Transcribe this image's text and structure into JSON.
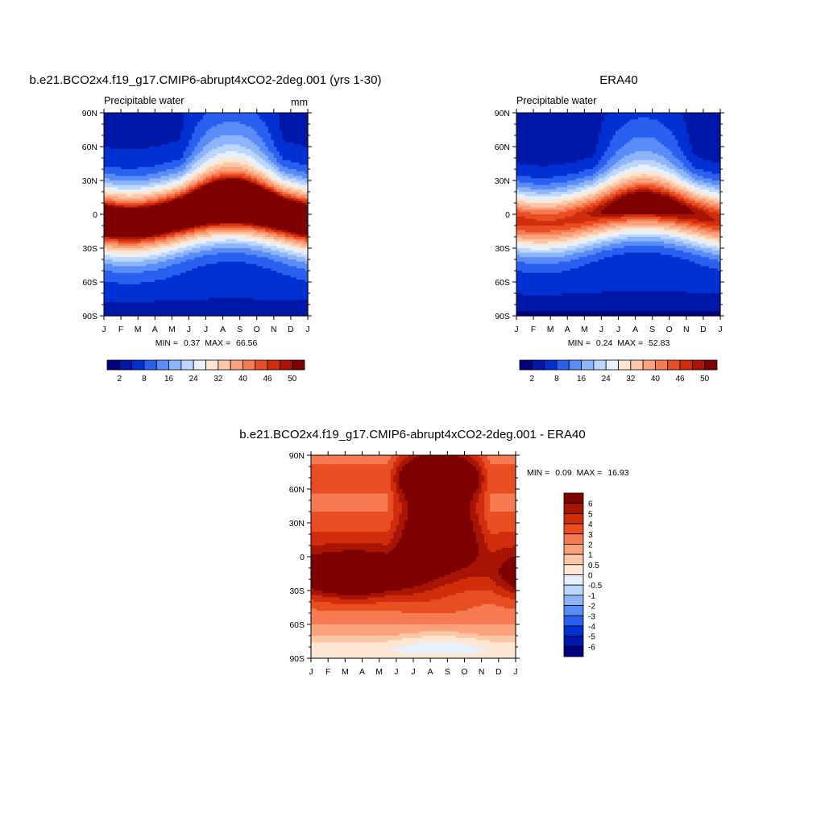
{
  "colors": {
    "diverging": [
      "#00007f",
      "#0018a8",
      "#0030d2",
      "#2a60f0",
      "#5a8cf7",
      "#8cb5fb",
      "#bdd6fd",
      "#e7f1fe",
      "#fee7d2",
      "#fcc7a6",
      "#f9a27c",
      "#f67a52",
      "#e94e22",
      "#d12c0c",
      "#a81504",
      "#7e0000"
    ]
  },
  "chart_data": [
    {
      "type": "heatmap",
      "title": "b.e21.BCO2x4.f19_g17.CMIP6-abrupt4xCO2-2deg.001 (yrs 1-30)",
      "subtitle": "Precipitable water",
      "units": "mm",
      "x_ticks": [
        "J",
        "F",
        "M",
        "A",
        "M",
        "J",
        "J",
        "A",
        "S",
        "O",
        "N",
        "D",
        "J"
      ],
      "y_ticks": [
        "90N",
        "60N",
        "30N",
        "0",
        "30S",
        "60S",
        "90S"
      ],
      "ylim": [
        -90,
        90
      ],
      "stats": {
        "min_label": "MIN =",
        "min": "0.37",
        "max_label": "MAX =",
        "max": "66.56"
      },
      "colorbar": {
        "orientation": "horizontal",
        "levels": [
          2,
          4,
          8,
          12,
          16,
          20,
          24,
          28,
          32,
          36,
          40,
          43,
          46,
          48,
          50
        ],
        "labels": [
          "2",
          "8",
          "16",
          "24",
          "32",
          "40",
          "46",
          "50"
        ]
      },
      "model": {
        "eq_peak": 62,
        "eq_min": 58,
        "width": 30,
        "south_pole": 1.5,
        "north_pole": 5,
        "north_pole_summer": 16,
        "nh_summer_boost": 14
      }
    },
    {
      "type": "heatmap",
      "title": "ERA40",
      "subtitle": "Precipitable water",
      "x_ticks": [
        "J",
        "F",
        "M",
        "A",
        "M",
        "J",
        "J",
        "A",
        "S",
        "O",
        "N",
        "D",
        "J"
      ],
      "y_ticks": [
        "90N",
        "60N",
        "30N",
        "0",
        "30S",
        "60S",
        "90S"
      ],
      "ylim": [
        -90,
        90
      ],
      "stats": {
        "min_label": "MIN =",
        "min": "0.24",
        "max_label": "MAX =",
        "max": "52.83"
      },
      "colorbar": {
        "orientation": "horizontal",
        "levels": [
          2,
          4,
          8,
          12,
          16,
          20,
          24,
          28,
          32,
          36,
          40,
          43,
          46,
          48,
          50
        ],
        "labels": [
          "2",
          "8",
          "16",
          "24",
          "32",
          "40",
          "46",
          "50"
        ]
      },
      "model": {
        "eq_peak": 50,
        "eq_min": 45,
        "width": 28,
        "south_pole": 1.0,
        "north_pole": 3,
        "north_pole_summer": 12,
        "nh_summer_boost": 10
      }
    },
    {
      "type": "heatmap",
      "title": "b.e21.BCO2x4.f19_g17.CMIP6-abrupt4xCO2-2deg.001 - ERA40",
      "x_ticks": [
        "J",
        "F",
        "M",
        "A",
        "M",
        "J",
        "J",
        "A",
        "S",
        "O",
        "N",
        "D",
        "J"
      ],
      "y_ticks": [
        "90N",
        "60N",
        "30N",
        "0",
        "30S",
        "60S",
        "90S"
      ],
      "ylim": [
        -90,
        90
      ],
      "stats": {
        "min_label": "MIN =",
        "min": "0.09",
        "max_label": "MAX =",
        "max": "16.93"
      },
      "colorbar": {
        "orientation": "vertical",
        "levels": [
          -6,
          -5,
          -4,
          -3,
          -2,
          -1,
          -0.5,
          0,
          0.5,
          1,
          2,
          3,
          4,
          5,
          6
        ],
        "labels": [
          "-6",
          "-5",
          "-4",
          "-3",
          "-2",
          "-1",
          "-0.5",
          "0",
          "0.5",
          "1",
          "2",
          "3",
          "4",
          "5",
          "6"
        ]
      }
    }
  ]
}
